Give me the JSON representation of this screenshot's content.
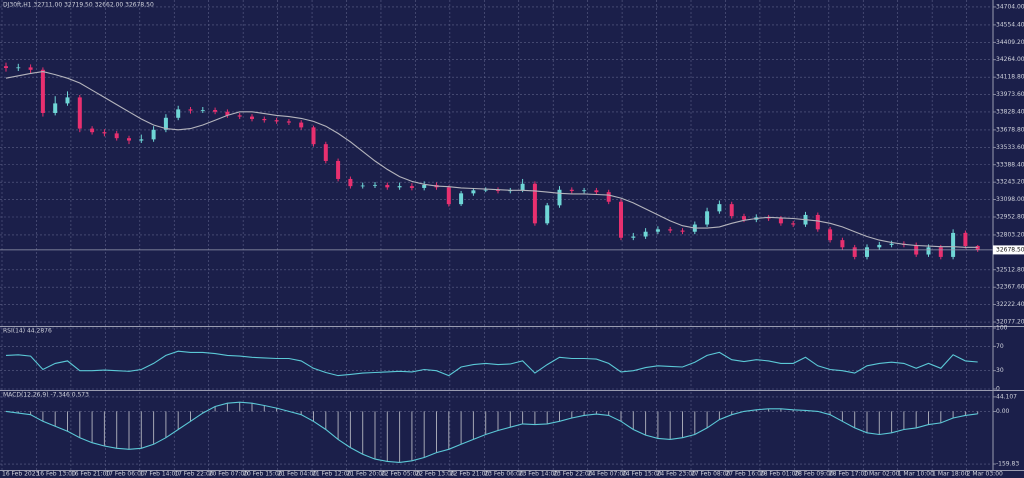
{
  "chart_data": [
    {
      "type": "candlestick",
      "title": "DJ30ft,H1  32711.00 32719.50 32662.00 32678.50",
      "open": [
        34210,
        34195,
        34200,
        34180,
        33820,
        33900,
        33950,
        33690,
        33660,
        33650,
        33610,
        33590,
        33600,
        33680,
        33780,
        33850,
        33840,
        33845,
        33830,
        33800,
        33790,
        33770,
        33760,
        33750,
        33740,
        33700,
        33560,
        33420,
        33270,
        33210,
        33215,
        33220,
        33200,
        33210,
        33195,
        33220,
        33200,
        33060,
        33150,
        33175,
        33180,
        33170,
        33175,
        33230,
        32900,
        33050,
        33180,
        33170,
        33175,
        33160,
        33080,
        32780,
        32790,
        32830,
        32850,
        32840,
        32830,
        32890,
        33000,
        33060,
        32960,
        32930,
        32950,
        32940,
        32900,
        32890,
        32970,
        32850,
        32760,
        32700,
        32620,
        32700,
        32720,
        32730,
        32720,
        32640,
        32700,
        32620,
        32820,
        32711
      ],
      "high": [
        34240,
        34230,
        34225,
        34200,
        33960,
        34000,
        33970,
        33710,
        33685,
        33670,
        33630,
        33640,
        33710,
        33810,
        33880,
        33870,
        33870,
        33865,
        33850,
        33820,
        33810,
        33790,
        33780,
        33770,
        33760,
        33715,
        33580,
        33440,
        33290,
        33240,
        33245,
        33240,
        33240,
        33235,
        33250,
        33240,
        33215,
        33170,
        33195,
        33200,
        33200,
        33195,
        33270,
        33250,
        33070,
        33210,
        33200,
        33195,
        33195,
        33180,
        33100,
        32820,
        32860,
        32875,
        32870,
        32860,
        32915,
        33030,
        33090,
        33080,
        32980,
        32975,
        32970,
        32960,
        32920,
        32995,
        32990,
        32870,
        32780,
        32720,
        32725,
        32745,
        32755,
        32750,
        32740,
        32725,
        32720,
        32850,
        32840,
        32719.5
      ],
      "low": [
        34165,
        34170,
        34150,
        33790,
        33800,
        33880,
        33660,
        33640,
        33625,
        33590,
        33560,
        33570,
        33580,
        33660,
        33760,
        33815,
        33820,
        33810,
        33780,
        33770,
        33750,
        33740,
        33730,
        33720,
        33680,
        33540,
        33400,
        33250,
        33190,
        33190,
        33195,
        33180,
        33180,
        33175,
        33175,
        33180,
        33040,
        33045,
        33130,
        33160,
        33150,
        33150,
        33160,
        32880,
        32885,
        33030,
        33150,
        33150,
        33140,
        33060,
        32760,
        32760,
        32770,
        32810,
        32820,
        32810,
        32810,
        32870,
        32980,
        32940,
        32910,
        32910,
        32920,
        32880,
        32870,
        32870,
        32830,
        32740,
        32680,
        32600,
        32600,
        32680,
        32700,
        32700,
        32620,
        32620,
        32600,
        32600,
        32690,
        32662
      ],
      "close": [
        34195,
        34200,
        34180,
        33820,
        33900,
        33950,
        33690,
        33660,
        33650,
        33610,
        33590,
        33600,
        33680,
        33780,
        33850,
        33840,
        33845,
        33830,
        33800,
        33790,
        33770,
        33760,
        33750,
        33740,
        33700,
        33560,
        33420,
        33270,
        33210,
        33215,
        33220,
        33200,
        33210,
        33195,
        33220,
        33200,
        33060,
        33150,
        33175,
        33180,
        33170,
        33175,
        33230,
        32900,
        33050,
        33180,
        33170,
        33175,
        33160,
        33080,
        32780,
        32790,
        32830,
        32850,
        32840,
        32830,
        32890,
        33000,
        33060,
        32960,
        32930,
        32950,
        32940,
        32900,
        32890,
        32970,
        32850,
        32760,
        32700,
        32620,
        32700,
        32720,
        32730,
        32720,
        32640,
        32700,
        32620,
        32820,
        32711,
        32678.5
      ],
      "ma": [
        34110,
        34130,
        34150,
        34165,
        34140,
        34110,
        34070,
        34010,
        33950,
        33890,
        33830,
        33770,
        33720,
        33690,
        33680,
        33690,
        33720,
        33760,
        33800,
        33830,
        33830,
        33815,
        33800,
        33790,
        33775,
        33750,
        33710,
        33650,
        33580,
        33500,
        33420,
        33350,
        33290,
        33250,
        33225,
        33210,
        33205,
        33195,
        33190,
        33185,
        33180,
        33175,
        33175,
        33170,
        33160,
        33150,
        33145,
        33145,
        33140,
        33135,
        33110,
        33070,
        33020,
        32970,
        32920,
        32880,
        32860,
        32860,
        32870,
        32900,
        32925,
        32940,
        32950,
        32945,
        32940,
        32930,
        32920,
        32900,
        32870,
        32830,
        32790,
        32760,
        32740,
        32725,
        32715,
        32710,
        32705,
        32705,
        32700,
        32700
      ],
      "up_color": "#6fd6d6",
      "down_color": "#e8306f",
      "ma_color": "#b4b4bc",
      "ylim": [
        32044,
        34762
      ],
      "yticks": [
        {
          "value": 34704,
          "label": "34704.00"
        },
        {
          "value": 34554.4,
          "label": "34554.40"
        },
        {
          "value": 34409.2,
          "label": "34409.20"
        },
        {
          "value": 34264,
          "label": "34264.00"
        },
        {
          "value": 34118.8,
          "label": "34118.80"
        },
        {
          "value": 33973.6,
          "label": "33973.60"
        },
        {
          "value": 33828.4,
          "label": "33828.40"
        },
        {
          "value": 33678.8,
          "label": "33678.80"
        },
        {
          "value": 33533.6,
          "label": "33533.60"
        },
        {
          "value": 33388.4,
          "label": "33388.40"
        },
        {
          "value": 33243.2,
          "label": "33243.20"
        },
        {
          "value": 33098,
          "label": "33098.00"
        },
        {
          "value": 32952.8,
          "label": "32952.80"
        },
        {
          "value": 32803.2,
          "label": "32803.20"
        },
        {
          "value": 32512.8,
          "label": "32512.80"
        },
        {
          "value": 32367.6,
          "label": "32367.60"
        },
        {
          "value": 32222.4,
          "label": "32222.40"
        },
        {
          "value": 32077.2,
          "label": "32077.20"
        }
      ],
      "price_marker": {
        "value": 32678.5,
        "label": "32678.50"
      },
      "x_labels": [
        "16 Feb 2023",
        "16 Feb 13:00",
        "16 Feb 21:00",
        "17 Feb 06:00",
        "17 Feb 14:00",
        "17 Feb 22:00",
        "20 Feb 07:00",
        "20 Feb 15:00",
        "21 Feb 04:00",
        "21 Feb 12:00",
        "21 Feb 20:00",
        "22 Feb 05:00",
        "22 Feb 13:00",
        "22 Feb 21:00",
        "23 Feb 06:00",
        "23 Feb 14:00",
        "23 Feb 22:00",
        "24 Feb 07:00",
        "24 Feb 15:00",
        "24 Feb 23:00",
        "27 Feb 08:00",
        "27 Feb 16:00",
        "28 Feb 01:00",
        "28 Feb 09:00",
        "28 Feb 17:00",
        "1 Mar 02:00",
        "1 Mar 10:00",
        "1 Mar 18:00",
        "2 Mar 03:00"
      ],
      "grid": true
    },
    {
      "type": "line",
      "title": "RSI(14) 44.2876",
      "values": [
        55,
        56,
        54,
        32,
        42,
        46,
        30,
        30,
        31,
        30,
        29,
        32,
        42,
        55,
        62,
        60,
        60,
        58,
        55,
        54,
        52,
        51,
        50,
        50,
        46,
        34,
        27,
        22,
        24,
        26,
        27,
        28,
        29,
        28,
        32,
        30,
        22,
        36,
        40,
        42,
        40,
        41,
        46,
        26,
        40,
        52,
        50,
        50,
        49,
        42,
        28,
        30,
        35,
        38,
        37,
        36,
        44,
        55,
        60,
        48,
        45,
        48,
        46,
        42,
        42,
        52,
        38,
        32,
        30,
        26,
        38,
        42,
        44,
        42,
        34,
        42,
        34,
        56,
        46,
        44.2876
      ],
      "color": "#5bc8d6",
      "ylim": [
        0,
        100
      ],
      "yticks": [
        100,
        70,
        30,
        0
      ],
      "grid": true
    },
    {
      "type": "macd",
      "title": "MACD(12,26,9) -7.346 0.573",
      "values": [
        0,
        -5,
        -10,
        -30,
        -45,
        -60,
        -80,
        -95,
        -105,
        -112,
        -115,
        -112,
        -100,
        -80,
        -55,
        -30,
        -5,
        15,
        25,
        28,
        25,
        18,
        10,
        0,
        -10,
        -30,
        -55,
        -85,
        -110,
        -130,
        -145,
        -152,
        -155,
        -150,
        -140,
        -125,
        -115,
        -100,
        -85,
        -70,
        -58,
        -48,
        -38,
        -40,
        -38,
        -30,
        -20,
        -12,
        -8,
        -12,
        -30,
        -55,
        -72,
        -82,
        -85,
        -80,
        -70,
        -50,
        -25,
        -10,
        0,
        5,
        8,
        8,
        5,
        3,
        0,
        -10,
        -30,
        -50,
        -65,
        -70,
        -65,
        -55,
        -50,
        -40,
        -35,
        -20,
        -12,
        -7.346
      ],
      "bar_color": "#a4a6b4",
      "color": "#5bc8d6",
      "ylim": [
        -178,
        59
      ],
      "yticks": [
        44.107,
        {
          "value": 0,
          "label": "0.00"
        },
        -159.83
      ],
      "grid": true
    }
  ]
}
